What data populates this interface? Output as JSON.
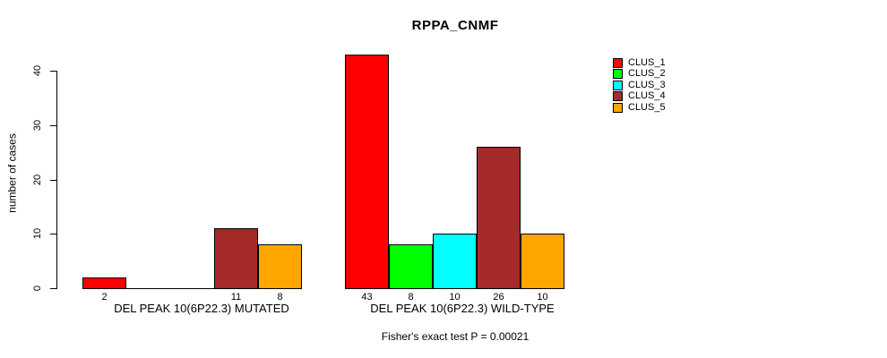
{
  "chart_data": {
    "type": "bar",
    "title": "RPPA_CNMF",
    "ylabel": "number of cases",
    "xlabel": "",
    "yticks": [
      0,
      10,
      20,
      30,
      40
    ],
    "ylim": [
      0,
      43
    ],
    "grid": false,
    "legend_position": "top-right",
    "text_color": "#000000",
    "series": [
      {
        "name": "CLUS_1",
        "color": "#FF0000"
      },
      {
        "name": "CLUS_2",
        "color": "#00FF00"
      },
      {
        "name": "CLUS_3",
        "color": "#00FFFF"
      },
      {
        "name": "CLUS_4",
        "color": "#A52A2A"
      },
      {
        "name": "CLUS_5",
        "color": "#FFA500"
      }
    ],
    "groups": [
      {
        "label": "DEL PEAK 10(6P22.3) MUTATED",
        "values": [
          2,
          0,
          0,
          11,
          8
        ],
        "bar_labels": [
          "2",
          "",
          "",
          "11",
          "8"
        ]
      },
      {
        "label": "DEL PEAK 10(6P22.3) WILD-TYPE",
        "values": [
          43,
          8,
          10,
          26,
          10
        ],
        "bar_labels": [
          "43",
          "8",
          "10",
          "26",
          "10"
        ]
      }
    ],
    "footnote": "Fisher's exact test P = 0.00021"
  }
}
